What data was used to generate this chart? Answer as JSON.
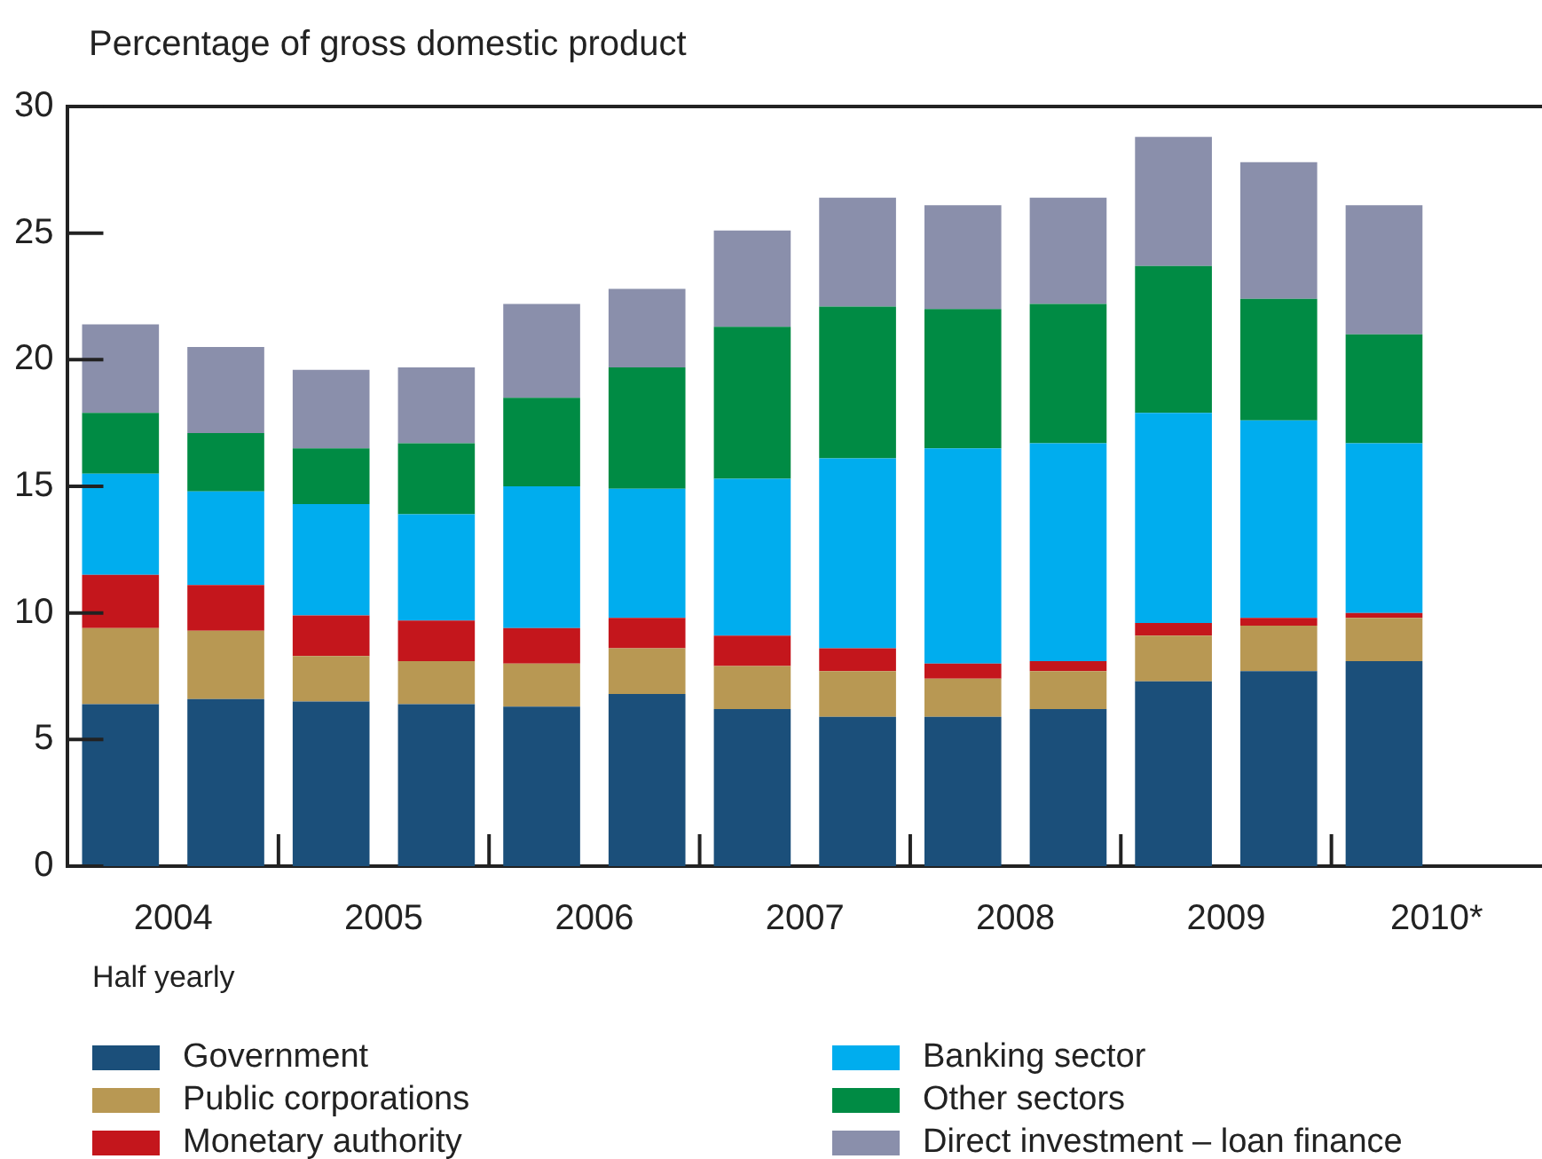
{
  "chart_data": {
    "type": "bar",
    "ylabel": "Percentage of gross domestic product",
    "xlabel": "Half yearly",
    "stacked": true,
    "legend": "bottom",
    "categories": [
      "2004",
      null,
      "2005",
      null,
      "2006",
      null,
      "2007",
      null,
      "2008",
      null,
      "2009",
      null,
      "2010*",
      null
    ],
    "ylim": [
      0,
      30
    ],
    "yticks": [
      0,
      5,
      10,
      15,
      20,
      25,
      30
    ],
    "series": [
      {
        "name": "Government",
        "color": "#1b4f7a",
        "values": [
          6.4,
          6.6,
          6.5,
          6.4,
          6.3,
          6.8,
          6.2,
          5.9,
          5.9,
          6.2,
          7.3,
          7.7,
          8.1,
          null
        ]
      },
      {
        "name": "Public corporations",
        "color": "#b89853",
        "values": [
          3.0,
          2.7,
          1.8,
          1.7,
          1.7,
          1.8,
          1.7,
          1.8,
          1.5,
          1.5,
          1.8,
          1.8,
          1.7,
          null
        ]
      },
      {
        "name": "Monetary authority",
        "color": "#c4161c",
        "values": [
          2.1,
          1.8,
          1.6,
          1.6,
          1.4,
          1.2,
          1.2,
          0.9,
          0.6,
          0.4,
          0.5,
          0.3,
          0.2,
          null
        ]
      },
      {
        "name": "Banking sector",
        "color": "#00adee",
        "values": [
          4.0,
          3.7,
          4.4,
          4.2,
          5.6,
          5.1,
          6.2,
          7.5,
          8.5,
          8.6,
          8.3,
          7.8,
          6.7,
          null
        ]
      },
      {
        "name": "Other sectors",
        "color": "#008b44",
        "values": [
          2.4,
          2.3,
          2.2,
          2.8,
          3.5,
          4.8,
          6.0,
          6.0,
          5.5,
          5.5,
          5.8,
          4.8,
          4.3,
          null
        ]
      },
      {
        "name": "Direct investment – loan finance",
        "color": "#8a8fab",
        "values": [
          3.5,
          3.4,
          3.1,
          3.0,
          3.7,
          3.1,
          3.8,
          4.3,
          4.1,
          4.2,
          5.1,
          5.4,
          5.1,
          null
        ]
      }
    ]
  }
}
